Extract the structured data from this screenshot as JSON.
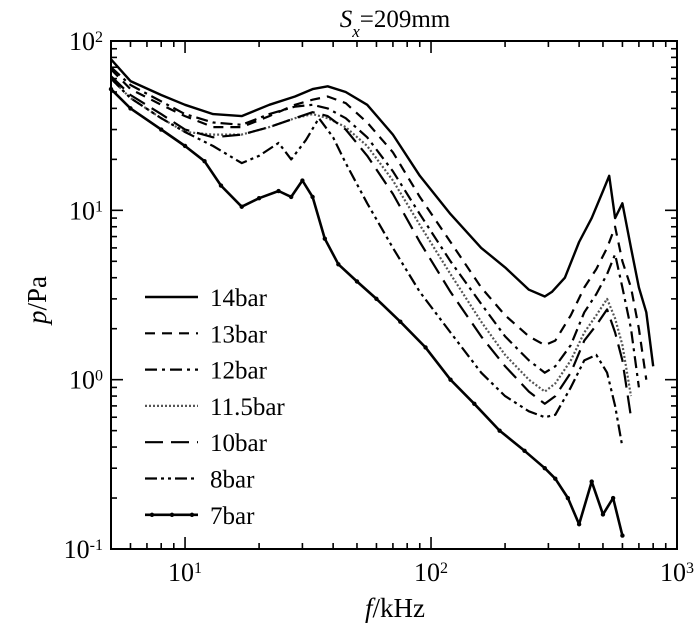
{
  "chart_data": {
    "type": "line",
    "title": {
      "var": "S",
      "sub": "x",
      "rest": "=209mm"
    },
    "xlabel": {
      "var": "f",
      "rest": "/kHz"
    },
    "ylabel": {
      "var": "p",
      "rest": "/Pa"
    },
    "xscale": "log",
    "yscale": "log",
    "xlim": [
      5,
      1000
    ],
    "ylim": [
      0.1,
      100
    ],
    "x_ticks": [
      {
        "base": "10",
        "exp": "1",
        "value": 10
      },
      {
        "base": "10",
        "exp": "2",
        "value": 100
      },
      {
        "base": "10",
        "exp": "3",
        "value": 1000
      }
    ],
    "y_ticks": [
      {
        "base": "10",
        "exp": "-1",
        "value": 0.1
      },
      {
        "base": "10",
        "exp": "0",
        "value": 1
      },
      {
        "base": "10",
        "exp": "1",
        "value": 10
      },
      {
        "base": "10",
        "exp": "2",
        "value": 100
      }
    ],
    "grid": false,
    "legend_position": "lower-left",
    "series": [
      {
        "name": "14bar",
        "dash": "solid",
        "color": "#000000",
        "x": [
          5,
          6,
          8,
          10,
          13,
          17,
          22,
          28,
          33,
          38,
          45,
          55,
          70,
          90,
          120,
          160,
          200,
          250,
          290,
          310,
          350,
          400,
          450,
          500,
          530,
          560,
          600,
          650,
          700,
          750,
          800
        ],
        "y": [
          78,
          58,
          48,
          42,
          37,
          36,
          42,
          47,
          52,
          54,
          50,
          42,
          28,
          16,
          9.5,
          6,
          4.6,
          3.4,
          3.1,
          3.3,
          4,
          6.5,
          9,
          13,
          16,
          9,
          11,
          6,
          3.5,
          2.5,
          1.2
        ]
      },
      {
        "name": "13bar",
        "dash": "dashed",
        "color": "#000000",
        "x": [
          5,
          6,
          8,
          10,
          13,
          17,
          22,
          28,
          33,
          38,
          45,
          55,
          70,
          90,
          120,
          160,
          200,
          250,
          290,
          320,
          370,
          420,
          470,
          520,
          560,
          600,
          650,
          700,
          750
        ],
        "y": [
          68,
          52,
          42,
          36,
          31,
          31,
          36,
          42,
          45,
          47,
          43,
          33,
          22,
          12,
          6.5,
          3.5,
          2.4,
          1.8,
          1.6,
          1.7,
          2.4,
          3.5,
          4.5,
          6,
          8,
          5,
          3.5,
          2,
          1
        ]
      },
      {
        "name": "12bar",
        "dash": "dashdot",
        "color": "#000000",
        "x": [
          5,
          6,
          8,
          10,
          13,
          17,
          22,
          28,
          33,
          38,
          45,
          55,
          70,
          90,
          120,
          160,
          200,
          250,
          290,
          320,
          370,
          420,
          470,
          520,
          560,
          600,
          650,
          700
        ],
        "y": [
          70,
          55,
          44,
          37,
          33,
          32,
          37,
          41,
          42,
          40,
          35,
          27,
          17,
          9.5,
          5,
          2.8,
          1.8,
          1.3,
          1.1,
          1.2,
          1.6,
          2.5,
          3.2,
          4.2,
          5.5,
          3.5,
          2,
          0.9
        ]
      },
      {
        "name": "11.5bar",
        "dash": "dotted",
        "color": "#555555",
        "x": [
          5,
          6,
          8,
          10,
          13,
          17,
          22,
          28,
          33,
          38,
          45,
          55,
          70,
          90,
          120,
          160,
          200,
          250,
          290,
          320,
          370,
          420,
          470,
          520,
          560,
          600,
          650
        ],
        "y": [
          60,
          46,
          35,
          29,
          28,
          28,
          31,
          35,
          37,
          35,
          31,
          24,
          15,
          8.2,
          4.2,
          2.2,
          1.4,
          1.0,
          0.85,
          0.95,
          1.3,
          1.9,
          2.4,
          3,
          2.3,
          1.6,
          0.8
        ]
      },
      {
        "name": "10bar",
        "dash": "longdash",
        "color": "#000000",
        "x": [
          5,
          6,
          8,
          10,
          13,
          17,
          22,
          28,
          33,
          38,
          45,
          55,
          70,
          90,
          120,
          160,
          200,
          250,
          290,
          320,
          370,
          420,
          470,
          520,
          560,
          600,
          650
        ],
        "y": [
          62,
          48,
          37,
          30,
          27,
          28,
          31,
          35,
          38,
          36,
          30,
          21,
          12.5,
          6.5,
          3.3,
          1.8,
          1.2,
          0.85,
          0.72,
          0.8,
          1.1,
          1.7,
          2.1,
          2.6,
          1.9,
          1.3,
          0.6
        ]
      },
      {
        "name": "8bar",
        "dash": "dashdotdot",
        "color": "#000000",
        "x": [
          5,
          6,
          8,
          10,
          13,
          17,
          20,
          24,
          27,
          31,
          35,
          40,
          45,
          55,
          70,
          90,
          120,
          160,
          200,
          250,
          290,
          320,
          370,
          420,
          470,
          520,
          560,
          600
        ],
        "y": [
          60,
          46,
          35,
          29,
          24,
          19,
          21,
          25,
          20,
          26,
          35,
          27,
          19,
          11,
          6,
          3.3,
          1.9,
          1.1,
          0.8,
          0.65,
          0.6,
          0.62,
          0.9,
          1.3,
          1.4,
          1.1,
          0.7,
          0.4
        ]
      },
      {
        "name": "7bar",
        "dash": "solid-marker",
        "color": "#000000",
        "x": [
          5,
          6,
          8,
          10,
          12,
          14,
          17,
          20,
          24,
          27,
          30,
          33,
          37,
          42,
          50,
          60,
          75,
          95,
          120,
          150,
          190,
          240,
          290,
          320,
          360,
          400,
          450,
          500,
          550,
          600
        ],
        "y": [
          52,
          40,
          30,
          24,
          19.5,
          14,
          10.5,
          11.8,
          13,
          12,
          15,
          12,
          6.8,
          4.8,
          3.8,
          3.0,
          2.2,
          1.55,
          1.0,
          0.72,
          0.5,
          0.38,
          0.3,
          0.26,
          0.2,
          0.14,
          0.25,
          0.16,
          0.2,
          0.12
        ]
      }
    ]
  }
}
